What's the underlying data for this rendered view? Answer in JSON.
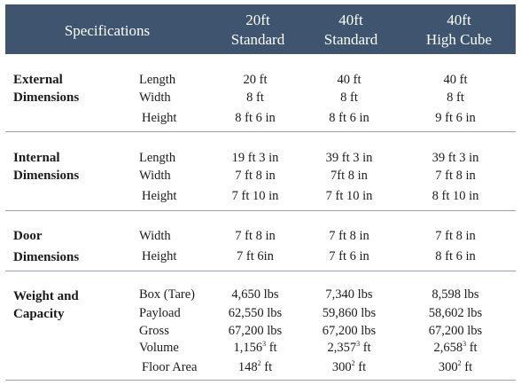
{
  "header": {
    "specifications": "Specifications",
    "col1": [
      "20ft",
      "Standard"
    ],
    "col2": [
      "40ft",
      "Standard"
    ],
    "col3": [
      "40ft",
      "High Cube"
    ]
  },
  "groups": {
    "external": [
      "External",
      "Dimensions"
    ],
    "internal": [
      "Internal",
      "Dimensions"
    ],
    "door": [
      "Door",
      "Dimensions"
    ],
    "weight": [
      "Weight and",
      "Capacity"
    ]
  },
  "rows": {
    "ext_length": {
      "label": "Length",
      "v": [
        "20 ft",
        "40 ft",
        "40 ft"
      ]
    },
    "ext_width": {
      "label": "Width",
      "v": [
        "8 ft",
        "8 ft",
        "8 ft"
      ]
    },
    "ext_height": {
      "label": "Height",
      "v": [
        "8 ft 6 in",
        "8 ft 6 in",
        "9 ft 6 in"
      ]
    },
    "int_length": {
      "label": "Length",
      "v": [
        "19 ft 3 in",
        "39 ft 3 in",
        "39 ft 3 in"
      ]
    },
    "int_width": {
      "label": "Width",
      "v": [
        "7 ft 8 in",
        "7ft 8 in",
        "7 ft 8 in"
      ]
    },
    "int_height": {
      "label": "Height",
      "v": [
        "7 ft 10 in",
        "7 ft 10 in",
        "8 ft 10 in"
      ]
    },
    "door_width": {
      "label": "Width",
      "v": [
        "7 ft 8 in",
        "7 ft 8 in",
        "7 ft 8 in"
      ]
    },
    "door_height": {
      "label": "Height",
      "v": [
        "7 ft 6in",
        "7 ft 6 in",
        "8 ft 6 in"
      ]
    },
    "box_tare": {
      "label": "Box (Tare)",
      "v": [
        "4,650 lbs",
        "7,340 lbs",
        "8,598 lbs"
      ]
    },
    "payload": {
      "label": "Payload",
      "v": [
        "62,550 lbs",
        "59,860 lbs",
        "58,602 lbs"
      ]
    },
    "gross": {
      "label": "Gross",
      "v": [
        "67,200 lbs",
        "67,200 lbs",
        "67,200 lbs"
      ]
    },
    "volume": {
      "label": "Volume",
      "v": [
        [
          "1,156",
          "3",
          " ft"
        ],
        [
          "2,357",
          "3",
          " ft"
        ],
        [
          "2,658",
          "3",
          " ft"
        ]
      ]
    },
    "floor_area": {
      "label": "Floor Area",
      "v": [
        [
          "148",
          "2",
          " ft"
        ],
        [
          "300",
          "2",
          " ft"
        ],
        [
          "300",
          "2",
          " ft"
        ]
      ]
    }
  }
}
